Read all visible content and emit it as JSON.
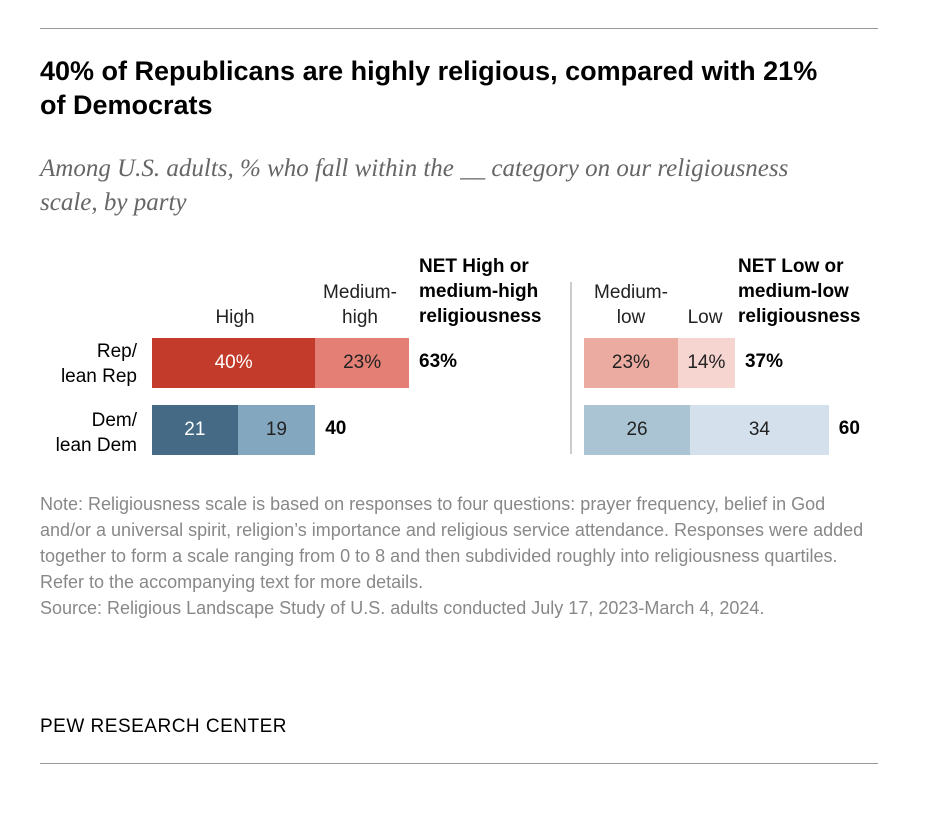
{
  "title": "40% of Republicans are highly religious, compared with 21% of Democrats",
  "subtitle": "Among U.S. adults, % who fall within the __ category on our religiousness scale, by party",
  "chart_data": {
    "type": "bar",
    "stacked": true,
    "categories": [
      "Rep/ lean Rep",
      "Dem/ lean Dem"
    ],
    "series": [
      {
        "name": "High",
        "values": [
          40,
          21
        ],
        "colors": [
          "#c33b2a",
          "#456a85"
        ]
      },
      {
        "name": "Medium-high",
        "values": [
          23,
          19
        ],
        "colors": [
          "#e47f75",
          "#84a7c0"
        ]
      },
      {
        "name": "Medium-low",
        "values": [
          23,
          26
        ],
        "colors": [
          "#ecaba1",
          "#abc4d4"
        ]
      },
      {
        "name": "Low",
        "values": [
          14,
          34
        ],
        "colors": [
          "#f6d5d0",
          "#d4e1ec"
        ]
      }
    ],
    "net_high": {
      "label": "NET High or medium-high religiousness",
      "values": [
        "63%",
        "40"
      ]
    },
    "net_low": {
      "label": "NET Low or medium-low religiousness",
      "values": [
        "37%",
        "60"
      ]
    },
    "value_labels": [
      [
        "40%",
        "23%",
        "23%",
        "14%"
      ],
      [
        "21",
        "19",
        "26",
        "34"
      ]
    ]
  },
  "labels": {
    "rep": "Rep/\nlean Rep",
    "dem": "Dem/\nlean Dem",
    "high": "High",
    "medhigh": "Medium-\nhigh",
    "netHigh": "NET High or\nmedium-high\nreligiousness",
    "medlow": "Medium-\nlow",
    "low": "Low",
    "netLow": "NET Low or\nmedium-low\nreligiousness"
  },
  "note": "Note: Religiousness scale is based on responses to four questions: prayer frequency, belief in God and/or a universal spirit, religion’s importance and religious service attendance. Responses were added together to form a scale ranging from 0 to 8 and then subdivided roughly into religiousness quartiles. Refer to the accompanying text for more details.",
  "source": "Source: Religious Landscape Study of U.S. adults conducted July 17, 2023-March 4, 2024.",
  "brand": "PEW RESEARCH CENTER"
}
